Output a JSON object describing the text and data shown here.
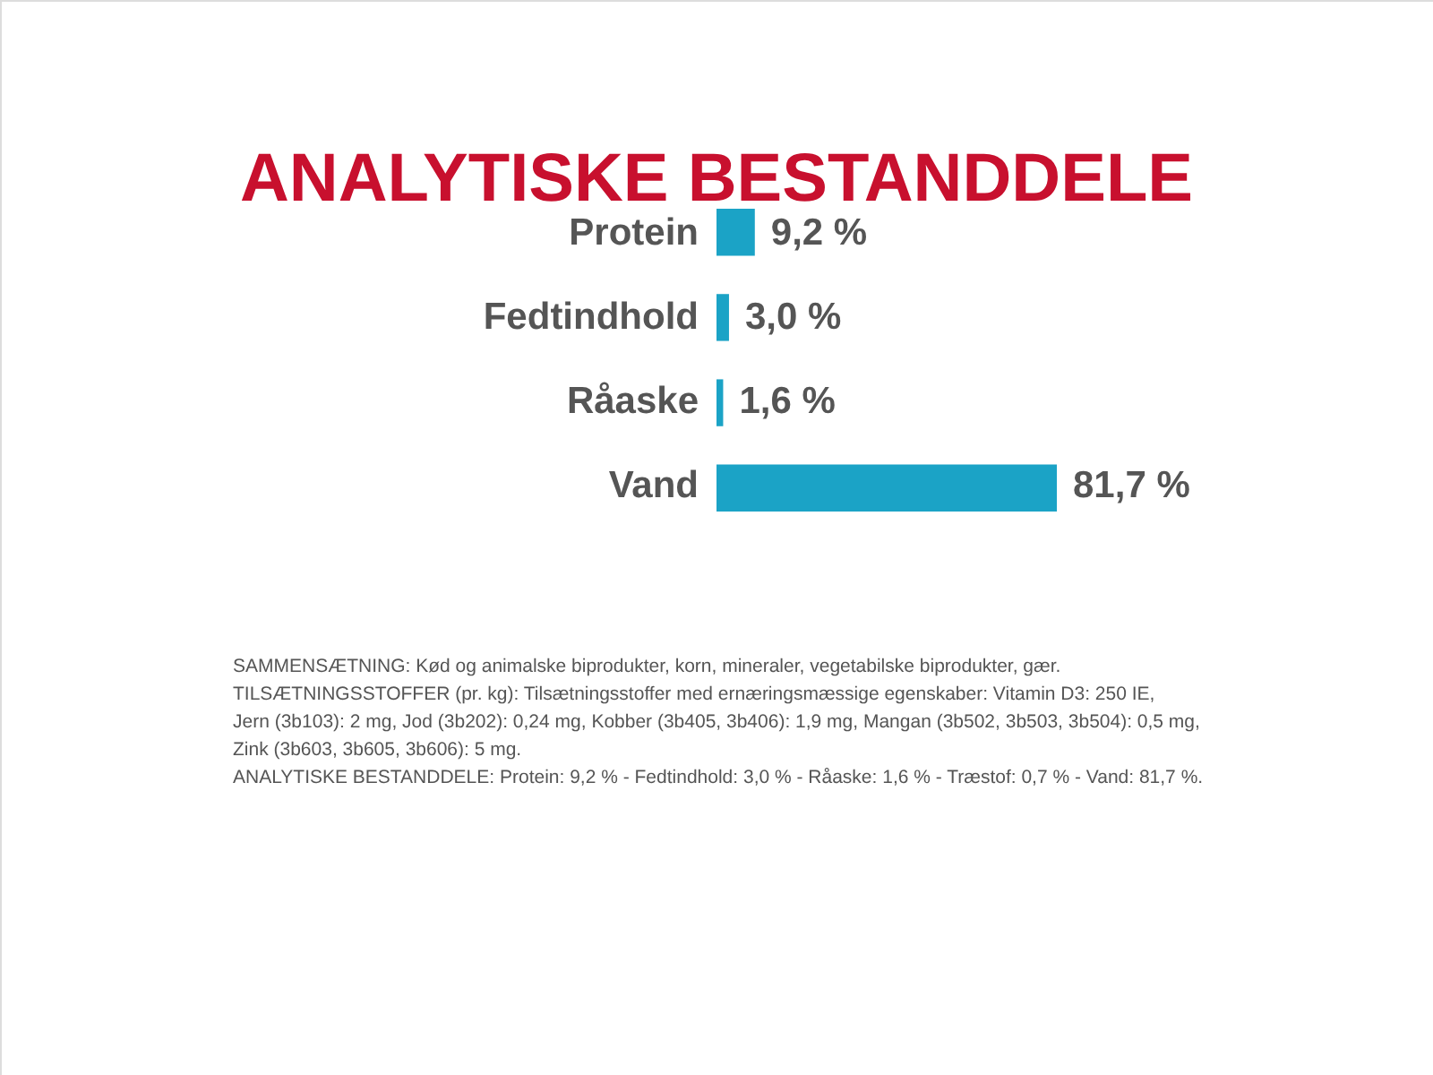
{
  "chart_data": {
    "type": "bar",
    "orientation": "horizontal",
    "title": "ANALYTISKE BESTANDDELE",
    "categories": [
      "Protein",
      "Fedtindhold",
      "Råaske",
      "Vand"
    ],
    "values": [
      9.2,
      3.0,
      1.6,
      81.7
    ],
    "value_labels": [
      "9,2 %",
      "3,0 %",
      "1,6 %",
      "81,7 %"
    ],
    "color": "#1ba3c6",
    "annotations": [
      "SAMMENSÆTNING: Kød og animalske biprodukter, korn, mineraler, vegetabilske biprodukter, gær.",
      "TILSÆTNINGSSTOFFER (pr. kg): Tilsætningsstoffer med ernæringsmæssige egenskaber: Vitamin D3: 250 IE,",
      "Jern (3b103): 2 mg, Jod (3b202): 0,24 mg, Kobber (3b405, 3b406): 1,9 mg, Mangan (3b502, 3b503, 3b504): 0,5 mg,",
      "Zink (3b603, 3b605, 3b606): 5 mg.",
      "ANALYTISKE BESTANDDELE: Protein: 9,2 % - Fedtindhold: 3,0 % - Råaske: 1,6 % - Træstof: 0,7 % - Vand: 81,7 %."
    ]
  }
}
